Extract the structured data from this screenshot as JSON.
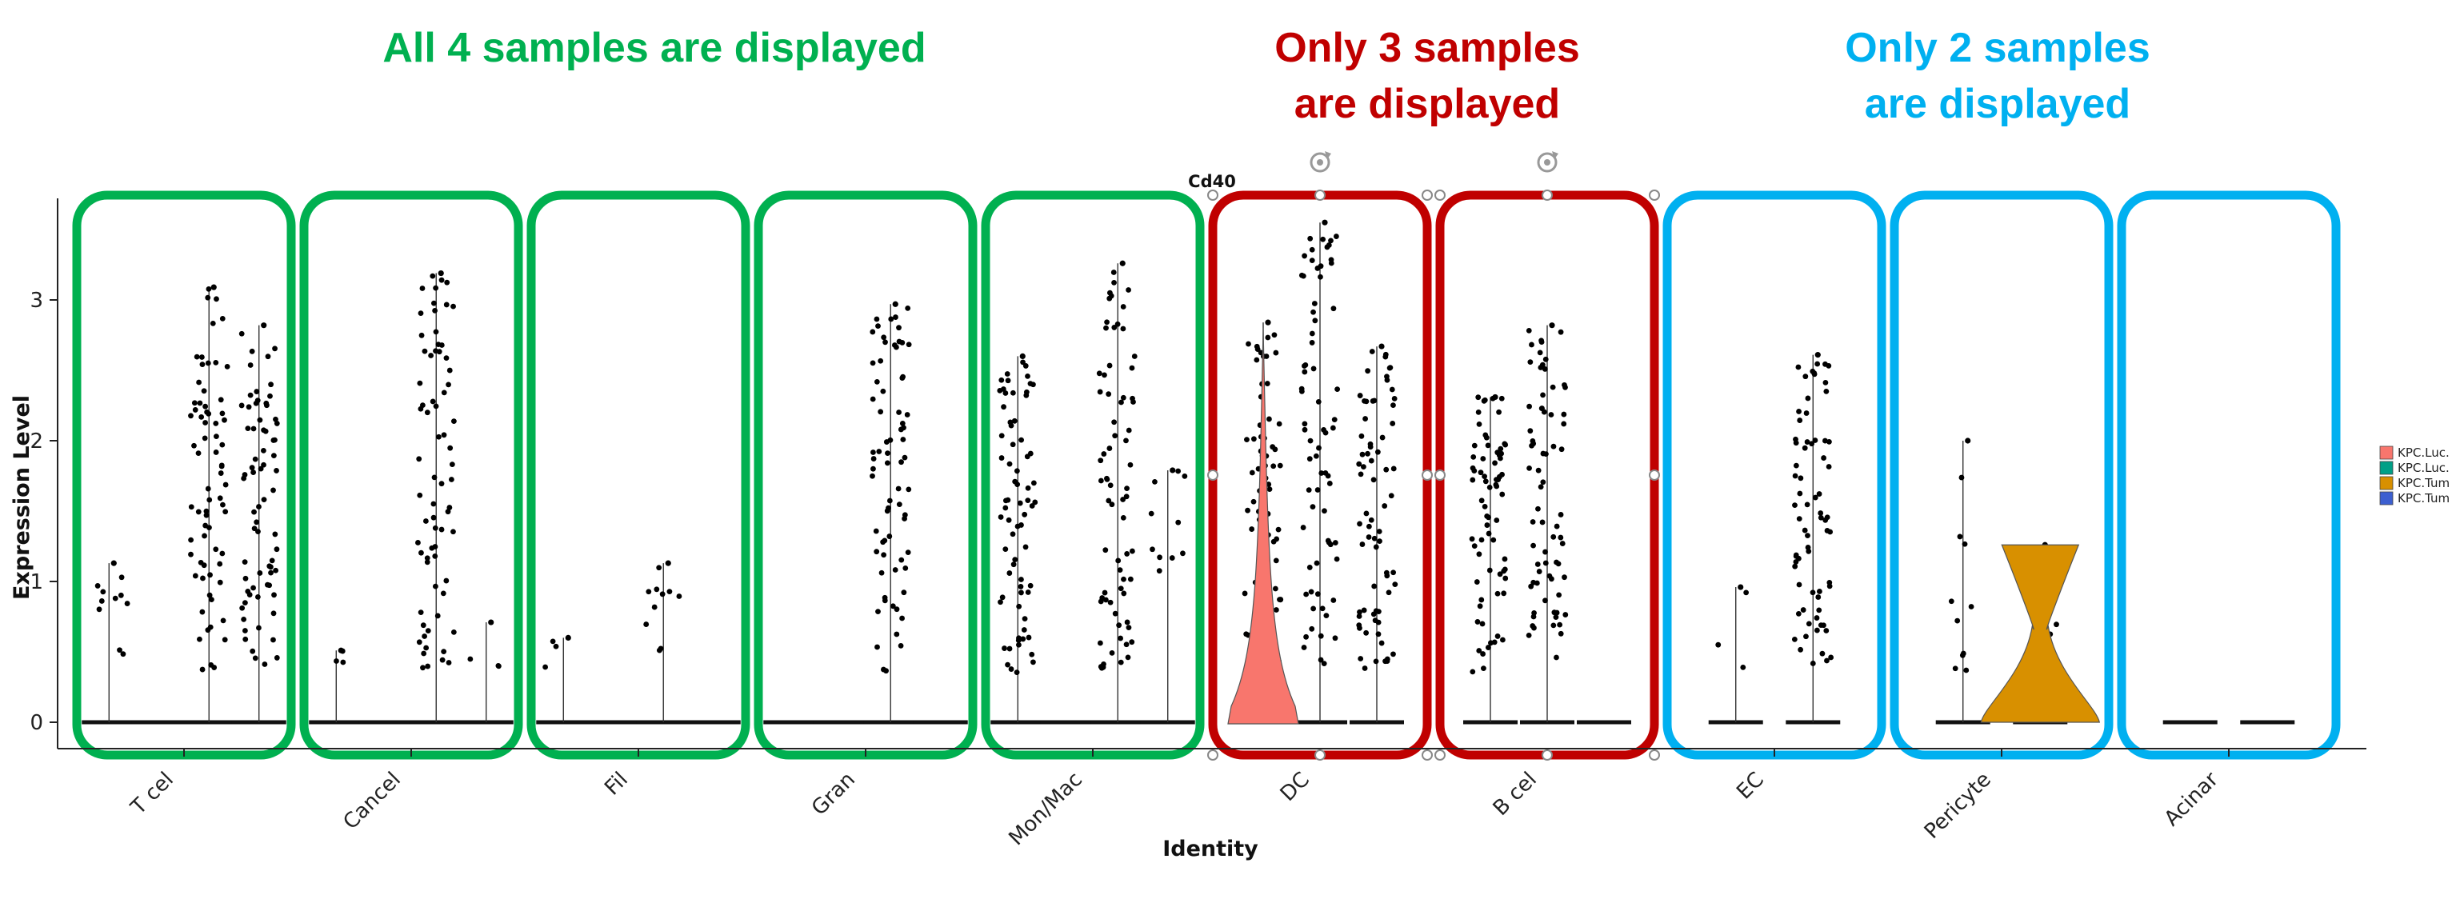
{
  "annotations": [
    {
      "lines": [
        "All 4 samples are displayed"
      ],
      "color": "#00b050"
    },
    {
      "lines": [
        "Only 3 samples",
        "are displayed"
      ],
      "color": "#c00000"
    },
    {
      "lines": [
        "Only 2 samples",
        "are displayed"
      ],
      "color": "#00b0f0"
    }
  ],
  "highlight_colors": [
    "#00b050",
    "#00b050",
    "#00b050",
    "#00b050",
    "#00b050",
    "#c00000",
    "#c00000",
    "#00b0f0",
    "#00b0f0",
    "#00b0f0"
  ],
  "chart_data": {
    "type": "violin",
    "title": "Cd40",
    "xlabel": "Identity",
    "ylabel": "Expression Level",
    "ylim": [
      -0.18,
      3.7
    ],
    "yticks": [
      0,
      1,
      2,
      3
    ],
    "categories": [
      "T cell",
      "Cancer",
      "Fib",
      "Gran",
      "Mon/Mac",
      "DC",
      "B cell",
      "EC",
      "Pericyte",
      "Acinar"
    ],
    "category_labels_visible": [
      "T cel",
      "Cancel",
      "Fil",
      "Gran",
      "Mon/Mac",
      "DC",
      "B cel",
      "EC",
      "Pericyte",
      "Acinar"
    ],
    "legend": {
      "position": "right",
      "entries": [
        "KPC.Luc.",
        "KPC.Luc.",
        "KPC.Tum",
        "KPC.Tum"
      ],
      "colors": [
        "#f8766d",
        "#00a087",
        "#d89000",
        "#3c5fd0"
      ]
    },
    "samples_per_category": [
      4,
      4,
      4,
      4,
      4,
      3,
      3,
      2,
      2,
      2
    ],
    "max_values": [
      [
        1.13,
        0.0,
        3.09,
        2.82
      ],
      [
        0.51,
        0.0,
        3.19,
        0.71
      ],
      [
        0.6,
        0.0,
        1.13,
        0.0
      ],
      [
        0.0,
        0.0,
        2.97,
        0.0
      ],
      [
        2.6,
        0.0,
        3.26,
        1.79
      ],
      [
        2.84,
        3.55,
        2.67
      ],
      [
        2.31,
        2.82,
        0.0
      ],
      [
        0.96,
        2.61
      ],
      [
        2.0,
        1.26
      ],
      [
        0.0,
        0.0
      ]
    ],
    "violin_peaks": [
      {
        "category": "DC",
        "sample_index": 0,
        "color": "#f8766d",
        "upper_value": 2.8
      },
      {
        "category": "Pericyte",
        "sample_index": 1,
        "color": "#d89000",
        "upper_value": 1.26
      }
    ]
  }
}
